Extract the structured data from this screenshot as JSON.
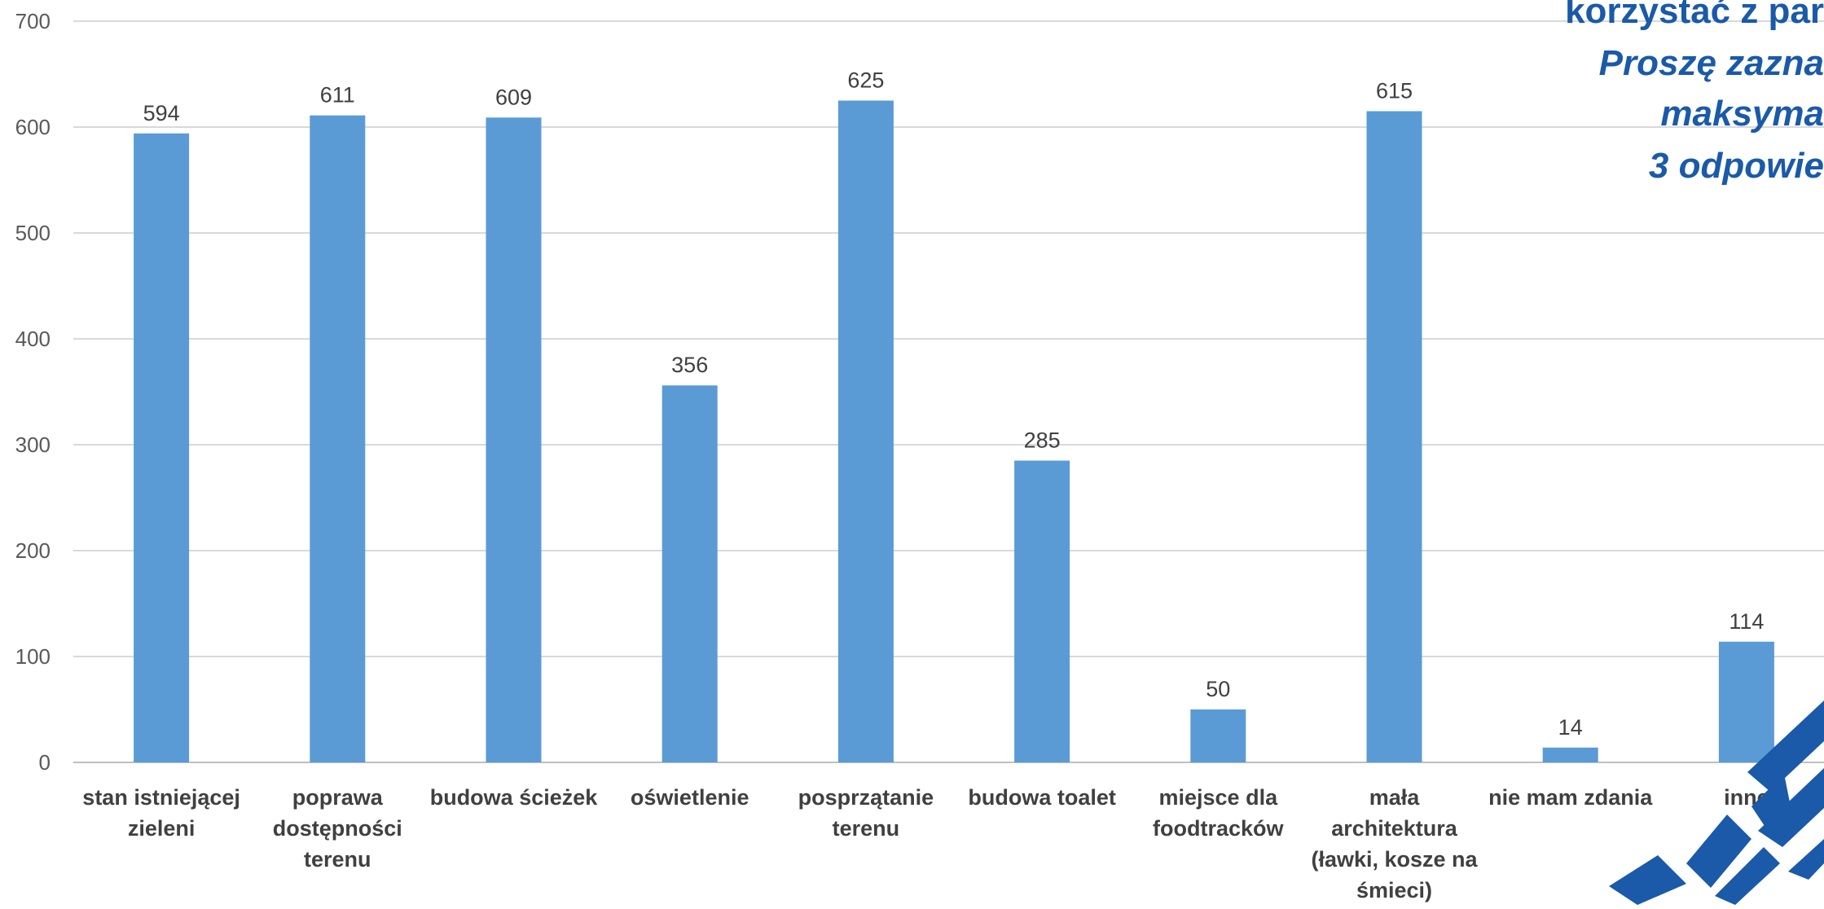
{
  "chart_data": {
    "type": "bar",
    "title_lines": [
      "korzystać z par",
      "Proszę zazna",
      "maksyma",
      "3 odpowie"
    ],
    "categories": [
      [
        "stan istniejącej",
        "zieleni"
      ],
      [
        "poprawa",
        "dostępności",
        "terenu"
      ],
      [
        "budowa ścieżek"
      ],
      [
        "oświetlenie"
      ],
      [
        "posprzątanie",
        "terenu"
      ],
      [
        "budowa toalet"
      ],
      [
        "miejsce dla",
        "foodtracków"
      ],
      [
        "mała",
        "architektura",
        "(ławki, kosze na",
        "śmieci)"
      ],
      [
        "nie mam zdania"
      ],
      [
        "inne"
      ]
    ],
    "values": [
      594,
      611,
      609,
      356,
      625,
      285,
      50,
      615,
      14,
      114
    ],
    "data_labels": [
      "594",
      "611",
      "609",
      "356",
      "625",
      "285",
      "50",
      "615",
      "14",
      "114"
    ],
    "ylim": [
      0,
      700
    ],
    "yticks": [
      "0",
      "100",
      "200",
      "300",
      "400",
      "500",
      "600",
      "700"
    ],
    "grid": true,
    "legend": "none",
    "colors": {
      "bar": "#5b9bd5",
      "grid": "#d9d9d9",
      "title": "#1a5aa8",
      "logo": "#1a5aa8"
    }
  },
  "logo": {
    "icon": "logo-stripes-icon"
  }
}
